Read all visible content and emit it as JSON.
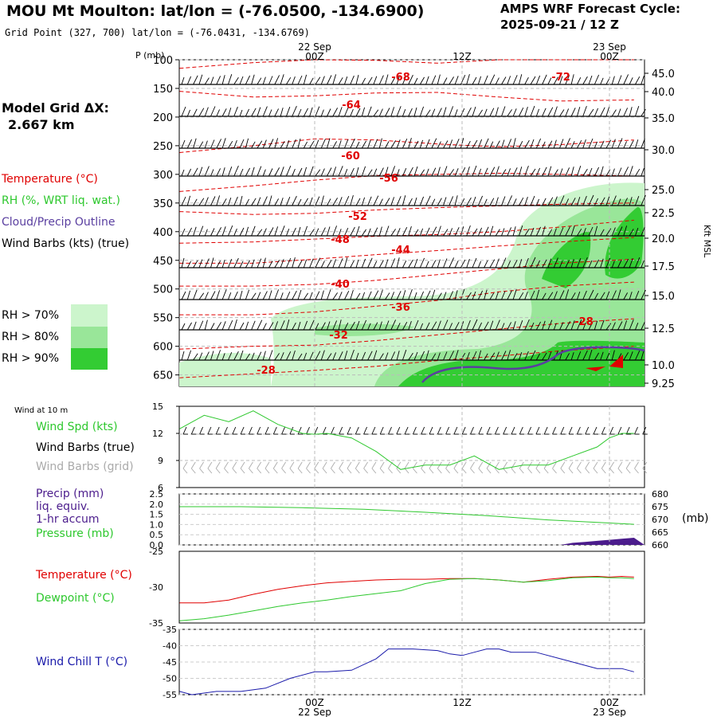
{
  "header": {
    "title": "MOU Mt Moulton:  lat/lon = (-76.0500, -134.6900)",
    "grid_point": "Grid Point (327, 700) lat/lon = (-76.0431, -134.6769)",
    "forecast_label": "AMPS WRF Forecast Cycle:",
    "forecast_cycle": "2025-09-21 / 12  Z"
  },
  "model_grid": {
    "label": "Model Grid ΔX:",
    "value": "2.667 km"
  },
  "legend_main": {
    "temperature": "Temperature (°C)",
    "rh": "RH (%, WRT liq. wat.)",
    "cloud": "Cloud/Precip Outline",
    "wind": "Wind Barbs (kts) (true)",
    "rh70": "RH > 70%",
    "rh80": "RH > 80%",
    "rh90": "RH > 90%"
  },
  "colors": {
    "temperature": "#e00000",
    "rh70": "#ccf5cc",
    "rh80": "#99e699",
    "rh90": "#33cc33",
    "cloud": "#5a3fa0",
    "wind_chill": "#1a1aaa",
    "dewpoint": "#2ec82e",
    "precip": "#4b1c8c",
    "grid_barb": "#aaaaaa"
  },
  "time_axis": {
    "top_dates": [
      "22 Sep",
      "23 Sep"
    ],
    "top_hours": [
      "00Z",
      "12Z",
      "00Z"
    ],
    "bottom_hours": [
      "00Z",
      "12Z",
      "00Z"
    ],
    "bottom_dates": [
      "22 Sep",
      "23 Sep"
    ]
  },
  "panel_main": {
    "p_label": "P (mb)",
    "p_ticks": [
      "100",
      "150",
      "200",
      "250",
      "300",
      "350",
      "400",
      "450",
      "500",
      "550",
      "600",
      "650"
    ],
    "alt_ticks": [
      "45.0",
      "40.0",
      "35.0",
      "30.0",
      "25.0",
      "22.5",
      "20.0",
      "17.5",
      "15.0",
      "12.5",
      "10.0",
      "9.25"
    ],
    "alt_label": "Kft MSL",
    "temp_labels": [
      "-68",
      "-72",
      "-64",
      "-60",
      "-56",
      "-52",
      "-48",
      "-44",
      "-40",
      "-36",
      "-32",
      "-28",
      "-28"
    ]
  },
  "panel_wind": {
    "title": "Wind at 10 m",
    "spd_label": "Wind Spd (kts)",
    "barbs_true": "Wind Barbs (true)",
    "barbs_grid": "Wind Barbs (grid)",
    "y_ticks": [
      "15",
      "12",
      "9",
      "6"
    ]
  },
  "panel_precip": {
    "precip_label": "Precip (mm)",
    "liq_label": "liq. equiv.",
    "accum_label": "1-hr accum",
    "pressure_label": "Pressure (mb)",
    "left_ticks": [
      "2.5",
      "2.0",
      "1.5",
      "1.0",
      "0.5",
      "0.0"
    ],
    "right_ticks": [
      "680",
      "675",
      "670",
      "665",
      "660"
    ],
    "right_unit": "(mb)"
  },
  "panel_temp": {
    "temp_label": "Temperature (°C)",
    "dew_label": "Dewpoint (°C)",
    "y_ticks": [
      "-25",
      "-30",
      "-35"
    ]
  },
  "panel_chill": {
    "label": "Wind Chill T (°C)",
    "y_ticks": [
      "-35",
      "-40",
      "-45",
      "-50",
      "-55"
    ]
  },
  "chart_data": [
    {
      "type": "line",
      "title": "Wind Spd (kts)",
      "x": [
        -11,
        -9,
        -7,
        -5,
        -3,
        -1,
        0,
        1,
        3,
        5,
        6,
        7,
        9,
        11,
        13,
        15,
        17,
        19,
        21,
        23,
        24,
        25,
        26
      ],
      "values": [
        12.5,
        14,
        13.3,
        14.5,
        13,
        12,
        11.9,
        12,
        11.5,
        10,
        9,
        8,
        8.5,
        8.5,
        9.5,
        8,
        8.5,
        8.5,
        9.5,
        10.5,
        11.5,
        12,
        12
      ],
      "ylim": [
        6,
        15
      ]
    },
    {
      "type": "line",
      "title": "Pressure (mb)",
      "x": [
        -11,
        -6,
        -1,
        4,
        9,
        14,
        19,
        24,
        26
      ],
      "values": [
        675.0,
        675.0,
        674.6,
        674.0,
        672.8,
        671.5,
        669.8,
        668.6,
        668.1
      ],
      "ylim": [
        660,
        680
      ]
    },
    {
      "type": "area",
      "title": "Precip (mm)",
      "x": [
        20,
        21,
        22,
        23,
        24,
        25,
        26
      ],
      "values": [
        0.0,
        0.1,
        0.15,
        0.2,
        0.25,
        0.3,
        0.35
      ],
      "ylim": [
        0,
        2.5
      ]
    },
    {
      "type": "line",
      "title": "Temperature (°C)",
      "series": [
        {
          "name": "Temperature (°C)",
          "x": [
            -11,
            -9,
            -7,
            -5,
            -3,
            -1,
            1,
            3,
            5,
            7,
            9,
            11,
            13,
            15,
            17,
            19,
            21,
            23,
            24,
            25,
            26
          ],
          "values": [
            -32.2,
            -32.2,
            -31.8,
            -31.0,
            -30.3,
            -29.8,
            -29.4,
            -29.2,
            -29.0,
            -28.9,
            -28.9,
            -28.8,
            -28.8,
            -29.0,
            -29.3,
            -28.9,
            -28.6,
            -28.5,
            -28.6,
            -28.5,
            -28.6
          ]
        },
        {
          "name": "Dewpoint (°C)",
          "x": [
            -11,
            -9,
            -7,
            -5,
            -3,
            -1,
            1,
            3,
            5,
            7,
            9,
            11,
            13,
            15,
            17,
            19,
            21,
            23,
            24,
            25,
            26
          ],
          "values": [
            -34.7,
            -34.4,
            -33.9,
            -33.3,
            -32.7,
            -32.2,
            -31.8,
            -31.3,
            -30.9,
            -30.5,
            -29.5,
            -28.9,
            -28.8,
            -29.0,
            -29.3,
            -29.1,
            -28.7,
            -28.6,
            -28.7,
            -28.7,
            -28.8
          ]
        }
      ],
      "ylim": [
        -35,
        -25
      ]
    },
    {
      "type": "line",
      "title": "Wind Chill T (°C)",
      "x": [
        -11,
        -10,
        -8,
        -6,
        -4,
        -2,
        0,
        1,
        3,
        5,
        6,
        8,
        10,
        11,
        12,
        13,
        14,
        15,
        16,
        18,
        20,
        21,
        22,
        23,
        24,
        25,
        26
      ],
      "values": [
        -54,
        -55,
        -54,
        -54,
        -53,
        -50,
        -48,
        -48,
        -47.5,
        -44,
        -41,
        -41,
        -41.5,
        -42.5,
        -43,
        -42,
        -41,
        -41,
        -42,
        -42,
        -44,
        -45,
        -46,
        -47,
        -47,
        -47,
        -48
      ],
      "ylim": [
        -55,
        -35
      ]
    },
    {
      "type": "line",
      "title": "Temperature (°C) cross-section",
      "xlabel": "",
      "ylabel": "P (mb)",
      "series": [
        {
          "name": "-68",
          "x": [
            -11,
            -5,
            0,
            5,
            10,
            15,
            20,
            26
          ],
          "values": [
            115,
            105,
            100,
            101,
            106,
            100,
            100,
            100
          ]
        },
        {
          "name": "-64",
          "x": [
            -11,
            -5,
            0,
            5,
            10,
            15,
            20,
            26
          ],
          "values": [
            155,
            165,
            163,
            158,
            157,
            165,
            172,
            170
          ]
        },
        {
          "name": "-60",
          "x": [
            -11,
            -5,
            0,
            5,
            10,
            15,
            20,
            26
          ],
          "values": [
            262,
            250,
            238,
            240,
            247,
            252,
            248,
            240
          ]
        },
        {
          "name": "-56",
          "x": [
            -11,
            -5,
            0,
            5,
            10,
            15,
            20,
            26
          ],
          "values": [
            330,
            320,
            310,
            302,
            300,
            298,
            300,
            303
          ]
        },
        {
          "name": "-52",
          "x": [
            -11,
            -5,
            0,
            5,
            10,
            15,
            20,
            26
          ],
          "values": [
            365,
            370,
            368,
            362,
            358,
            355,
            352,
            350
          ]
        },
        {
          "name": "-48",
          "x": [
            -11,
            -5,
            0,
            5,
            10,
            15,
            20,
            26
          ],
          "values": [
            420,
            418,
            413,
            408,
            405,
            400,
            392,
            380
          ]
        },
        {
          "name": "-44",
          "x": [
            -11,
            -5,
            0,
            5,
            10,
            15,
            20,
            26
          ],
          "values": [
            455,
            455,
            448,
            440,
            433,
            425,
            418,
            410
          ]
        },
        {
          "name": "-40",
          "x": [
            -11,
            -5,
            0,
            5,
            10,
            15,
            20,
            26
          ],
          "values": [
            495,
            495,
            492,
            485,
            475,
            465,
            455,
            448
          ]
        },
        {
          "name": "-36",
          "x": [
            -11,
            -5,
            0,
            5,
            10,
            15,
            20,
            26
          ],
          "values": [
            545,
            545,
            540,
            530,
            520,
            505,
            495,
            488
          ]
        },
        {
          "name": "-32",
          "x": [
            -11,
            -5,
            0,
            5,
            10,
            15,
            20,
            26
          ],
          "values": [
            605,
            600,
            598,
            590,
            580,
            570,
            560,
            552
          ]
        },
        {
          "name": "-28",
          "x": [
            -11,
            -5,
            0,
            5,
            10,
            15,
            20,
            26
          ],
          "values": [
            655,
            648,
            642,
            635,
            625,
            617,
            608,
            600
          ]
        }
      ],
      "ylim": [
        670,
        100
      ]
    }
  ]
}
